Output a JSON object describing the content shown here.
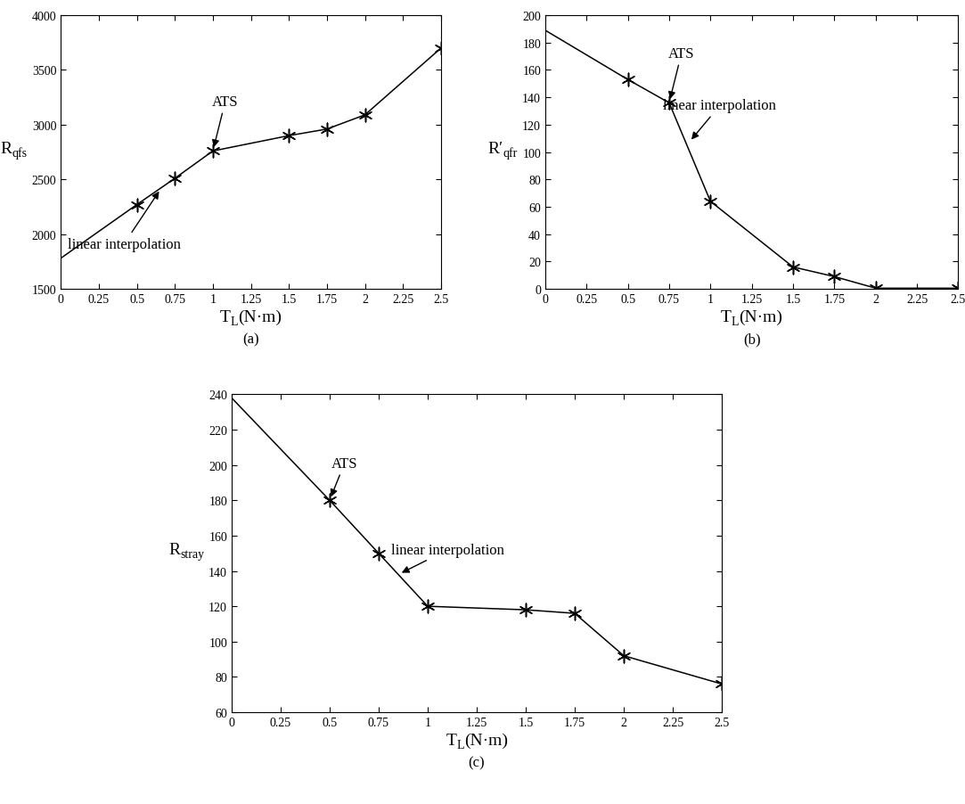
{
  "chart_data": [
    {
      "type": "line",
      "title": "(a)",
      "xlabel": [
        "T",
        "L",
        "(N·m)"
      ],
      "ylabel": [
        "R",
        "qfs"
      ],
      "xlim": [
        0,
        2.5
      ],
      "xticks": [
        0,
        0.25,
        0.5,
        0.75,
        1,
        1.25,
        1.5,
        1.75,
        2,
        2.25,
        2.5
      ],
      "ylim": [
        1500,
        4000
      ],
      "yticks": [
        1500,
        2000,
        2500,
        3000,
        3500,
        4000
      ],
      "grid": false,
      "series": [
        {
          "type": "line",
          "color": "#000000",
          "line_style": "solid",
          "x": [
            0,
            0.5,
            0.75,
            1,
            1.5,
            1.75,
            2,
            2.5
          ],
          "values": [
            1780,
            2270,
            2510,
            2760,
            2900,
            2960,
            3090,
            3700
          ]
        },
        {
          "type": "scatter",
          "color": "#000000",
          "marker": "asterisk",
          "x": [
            0.5,
            0.75,
            1,
            1.5,
            1.75,
            2,
            2.5
          ],
          "values": [
            2270,
            2510,
            2760,
            2900,
            2960,
            3090,
            3700
          ]
        }
      ],
      "annotations": [
        {
          "text": "ATS",
          "x": 1,
          "y": 2760
        },
        {
          "text": "linear interpolation",
          "x": 0.66,
          "y": 2420
        }
      ]
    },
    {
      "type": "line",
      "title": "(b)",
      "xlabel": [
        "T",
        "L",
        "(N·m)"
      ],
      "ylabel": [
        "R′",
        "qfr"
      ],
      "xlim": [
        0,
        2.5
      ],
      "xticks": [
        0,
        0.25,
        0.5,
        0.75,
        1,
        1.25,
        1.5,
        1.75,
        2,
        2.25,
        2.5
      ],
      "ylim": [
        0,
        200
      ],
      "yticks": [
        0,
        20,
        40,
        60,
        80,
        100,
        120,
        140,
        160,
        180,
        200
      ],
      "grid": false,
      "series": [
        {
          "type": "line",
          "color": "#000000",
          "line_style": "solid",
          "x": [
            0,
            0.5,
            0.75,
            1,
            1.5,
            1.75,
            2,
            2.5
          ],
          "values": [
            189,
            153,
            136,
            64,
            16,
            9,
            0.5,
            0.5
          ]
        },
        {
          "type": "scatter",
          "color": "#000000",
          "marker": "asterisk",
          "x": [
            0.5,
            0.75,
            1,
            1.5,
            1.75,
            2,
            2.5
          ],
          "values": [
            153,
            136,
            64,
            16,
            9,
            0.5,
            0.5
          ]
        }
      ],
      "annotations": [
        {
          "text": "ATS",
          "x": 0.75,
          "y": 136
        },
        {
          "text": "linear interpolation",
          "x": 0.87,
          "y": 107
        }
      ]
    },
    {
      "type": "line",
      "title": "(c)",
      "xlabel": [
        "T",
        "L",
        "(N·m)"
      ],
      "ylabel": [
        "R",
        "stray"
      ],
      "xlim": [
        0,
        2.5
      ],
      "xticks": [
        0,
        0.25,
        0.5,
        0.75,
        1,
        1.25,
        1.5,
        1.75,
        2,
        2.25,
        2.5
      ],
      "ylim": [
        60,
        240
      ],
      "yticks": [
        60,
        80,
        100,
        120,
        140,
        160,
        180,
        200,
        220,
        240
      ],
      "grid": false,
      "series": [
        {
          "type": "line",
          "color": "#000000",
          "line_style": "solid",
          "x": [
            0,
            0.5,
            0.75,
            1,
            1.5,
            1.75,
            2,
            2.5
          ],
          "values": [
            238,
            180,
            150,
            120,
            118,
            116,
            92,
            76
          ]
        },
        {
          "type": "scatter",
          "color": "#000000",
          "marker": "asterisk",
          "x": [
            0.5,
            0.75,
            1,
            1.5,
            1.75,
            2,
            2.5
          ],
          "values": [
            180,
            150,
            120,
            118,
            116,
            92,
            76
          ]
        }
      ],
      "annotations": [
        {
          "text": "ATS",
          "x": 0.5,
          "y": 180
        },
        {
          "text": "linear interpolation",
          "x": 0.85,
          "y": 138
        }
      ]
    }
  ]
}
